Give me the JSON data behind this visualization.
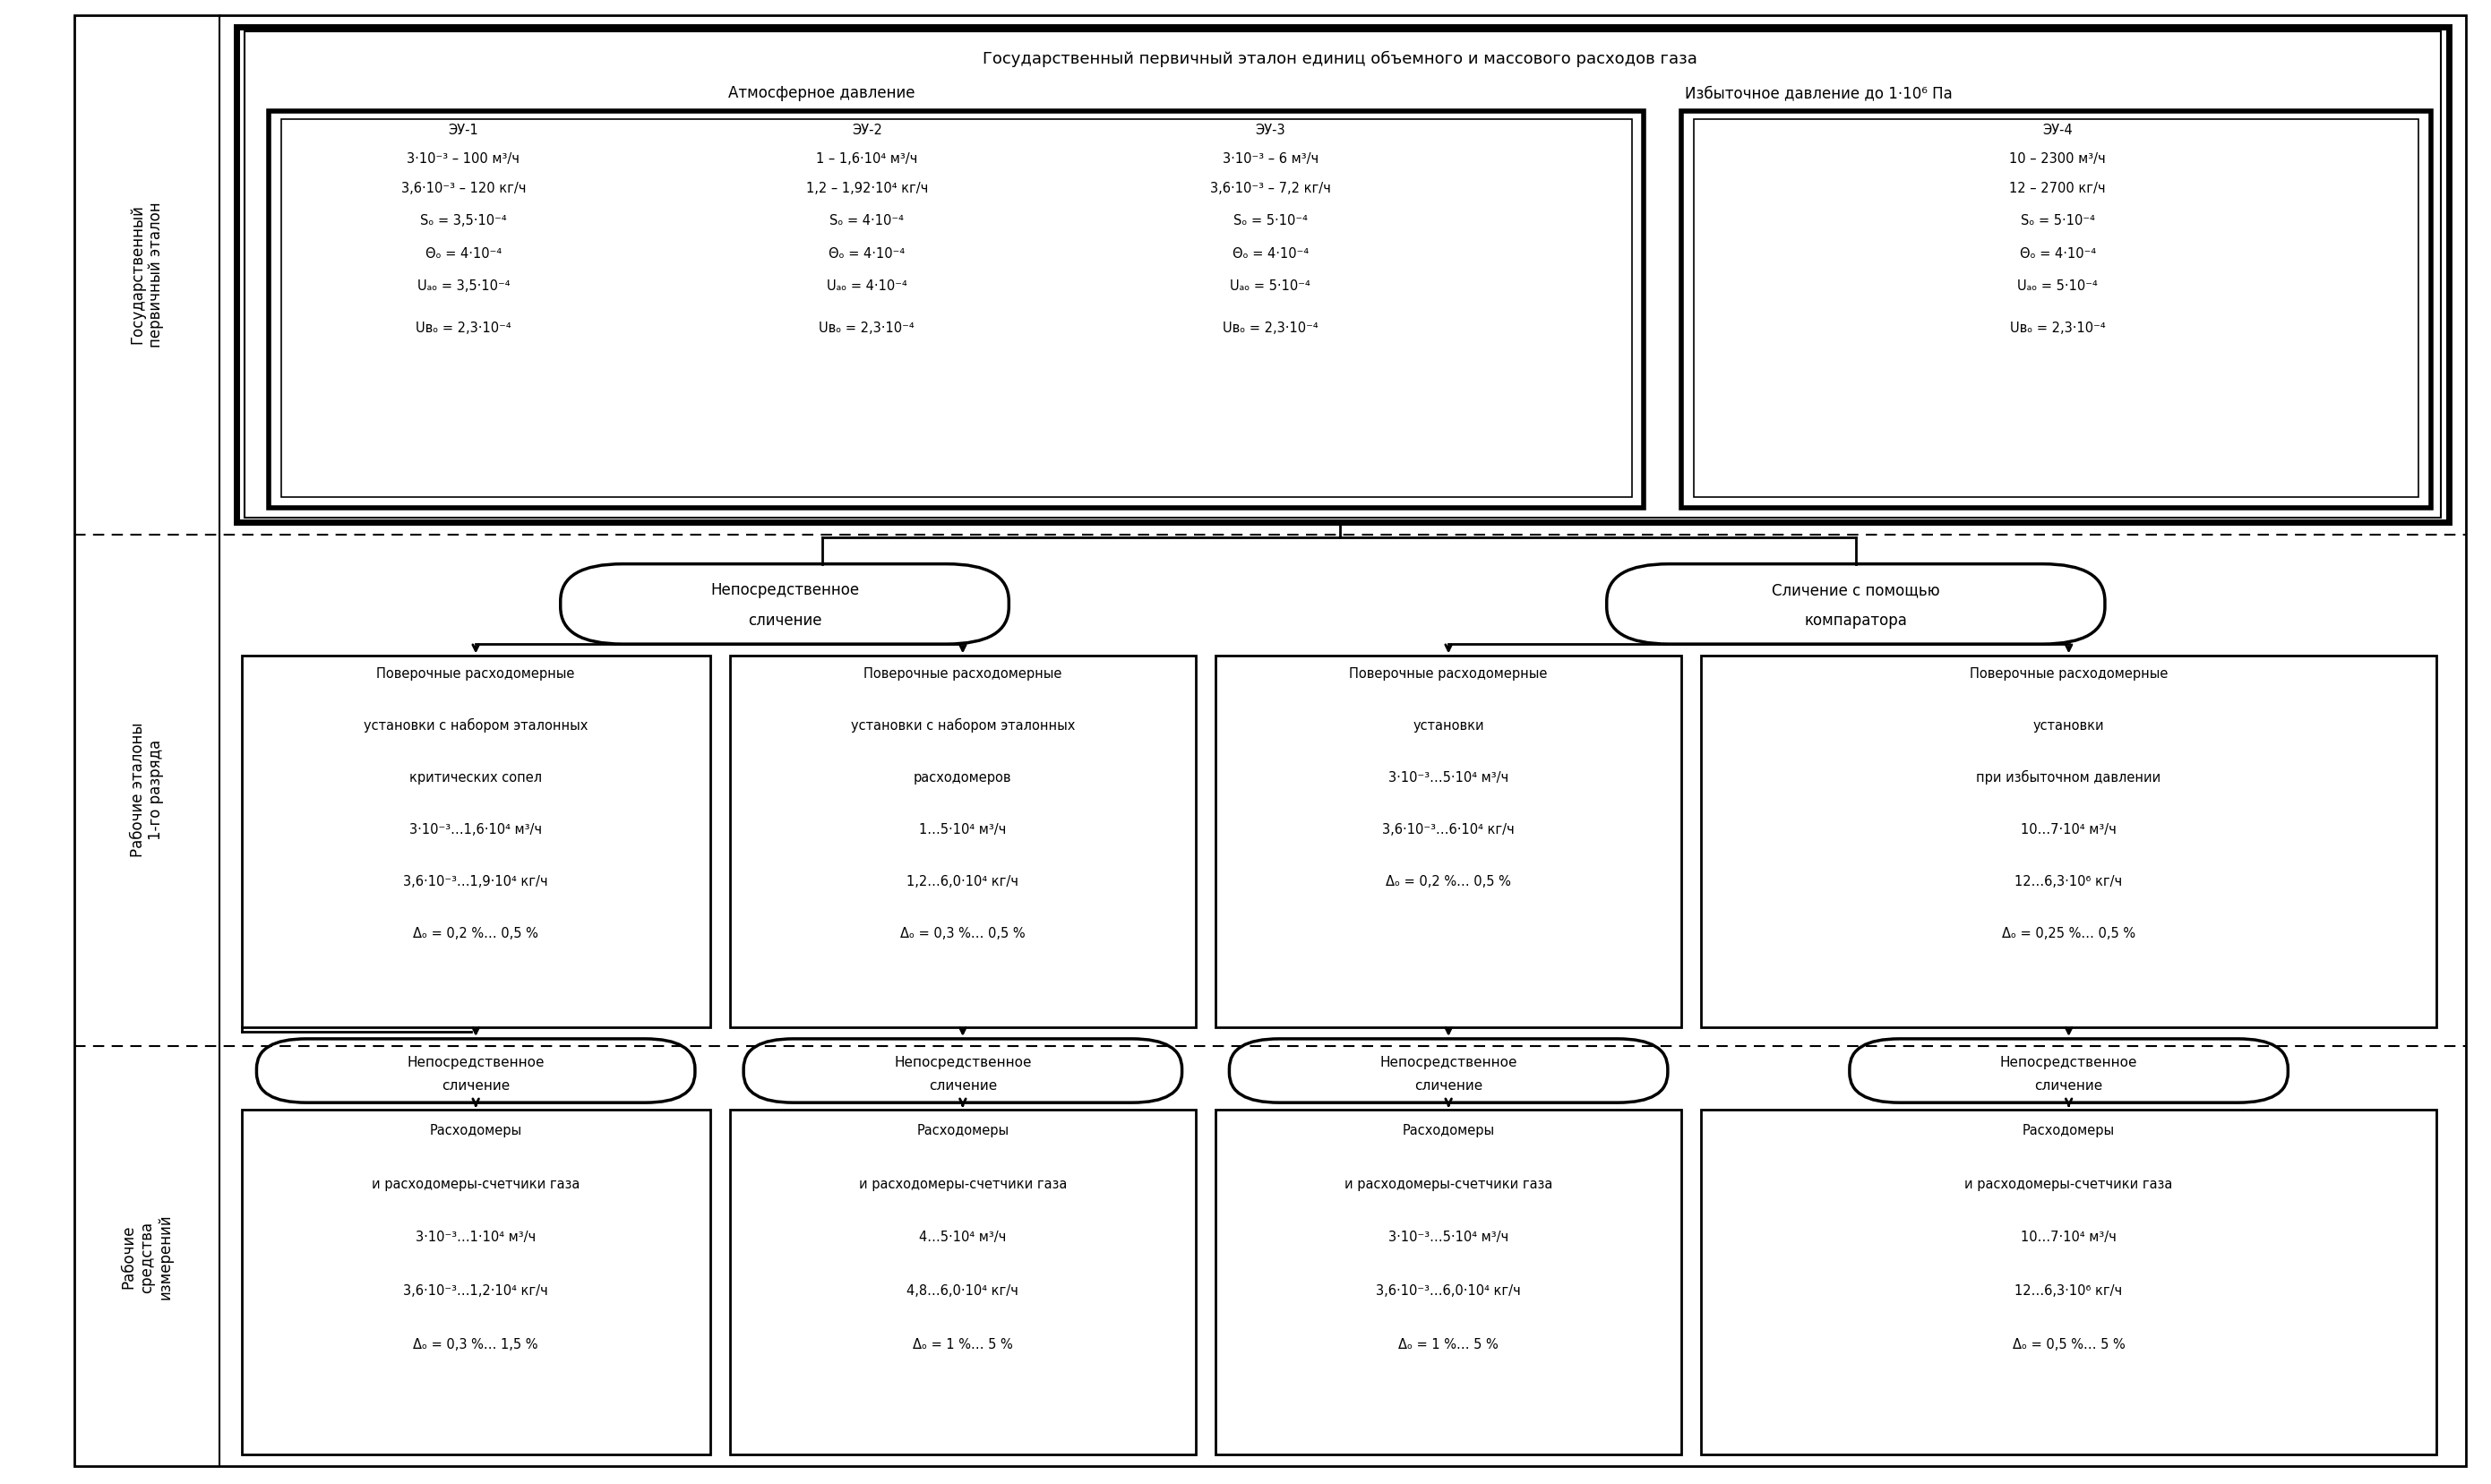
{
  "figsize": [
    27.81,
    16.57
  ],
  "bg_color": "#ffffff",
  "primary_etalon": {
    "title": "Государственный первичный эталон единиц объемного и массового расходов газа",
    "subtitle_atm": "Атмосферное давление",
    "subtitle_exc": "Избыточное давление до 1·10⁶ Па",
    "eu1": [
      "ЭУ-1",
      "3·10⁻³ – 100 м³/ч",
      "3,6·10⁻³ – 120 кг/ч",
      "Sₒ = 3,5·10⁻⁴",
      "Θₒ = 4·10⁻⁴",
      "Uₐₒ = 3,5·10⁻⁴",
      "Uвₒ = 2,3·10⁻⁴"
    ],
    "eu2": [
      "ЭУ-2",
      "1 – 1,6·10⁴ м³/ч",
      "1,2 – 1,92·10⁴ кг/ч",
      "Sₒ = 4·10⁻⁴",
      "Θₒ = 4·10⁻⁴",
      "Uₐₒ = 4·10⁻⁴",
      "Uвₒ = 2,3·10⁻⁴"
    ],
    "eu3": [
      "ЭУ-3",
      "3·10⁻³ – 6 м³/ч",
      "3,6·10⁻³ – 7,2 кг/ч",
      "Sₒ = 5·10⁻⁴",
      "Θₒ = 4·10⁻⁴",
      "Uₐₒ = 5·10⁻⁴",
      "Uвₒ = 2,3·10⁻⁴"
    ],
    "eu4": [
      "ЭУ-4",
      "10 – 2300 м³/ч",
      "12 – 2700 кг/ч",
      "Sₒ = 5·10⁻⁴",
      "Θₒ = 4·10⁻⁴",
      "Uₐₒ = 5·10⁻⁴",
      "Uвₒ = 2,3·10⁻⁴"
    ]
  },
  "we_boxes": [
    [
      "Поверочные расходомерные",
      "установки с набором эталонных",
      "критических сопел",
      "3·10⁻³…1,6·10⁴ м³/ч",
      "3,6·10⁻³…1,9·10⁴ кг/ч",
      "Δₒ = 0,2 %… 0,5 %"
    ],
    [
      "Поверочные расходомерные",
      "установки с набором эталонных",
      "расходомеров",
      "1…5·10⁴ м³/ч",
      "1,2…6,0·10⁴ кг/ч",
      "Δₒ = 0,3 %… 0,5 %"
    ],
    [
      "Поверочные расходомерные",
      "установки",
      "3·10⁻³…5·10⁴ м³/ч",
      "3,6·10⁻³…6·10⁴ кг/ч",
      "Δₒ = 0,2 %… 0,5 %"
    ],
    [
      "Поверочные расходомерные",
      "установки",
      "при избыточном давлении",
      "10…7·10⁴ м³/ч",
      "12…6,3·10⁶ кг/ч",
      "Δₒ = 0,25 %… 0,5 %"
    ]
  ],
  "wi_boxes": [
    [
      "Расходомеры",
      "и расходомеры-счетчики газа",
      "3·10⁻³…1·10⁴ м³/ч",
      "3,6·10⁻³…1,2·10⁴ кг/ч",
      "Δₒ = 0,3 %… 1,5 %"
    ],
    [
      "Расходомеры",
      "и расходомеры-счетчики газа",
      "4…5·10⁴ м³/ч",
      "4,8…6,0·10⁴ кг/ч",
      "Δₒ = 1 %… 5 %"
    ],
    [
      "Расходомеры",
      "и расходомеры-счетчики газа",
      "3·10⁻³…5·10⁴ м³/ч",
      "3,6·10⁻³…6,0·10⁴ кг/ч",
      "Δₒ = 1 %… 5 %"
    ],
    [
      "Расходомеры",
      "и расходомеры-счетчики газа",
      "10…7·10⁴ м³/ч",
      "12…6,3·10⁶ кг/ч",
      "Δₒ = 0,5 %… 5 %"
    ]
  ]
}
